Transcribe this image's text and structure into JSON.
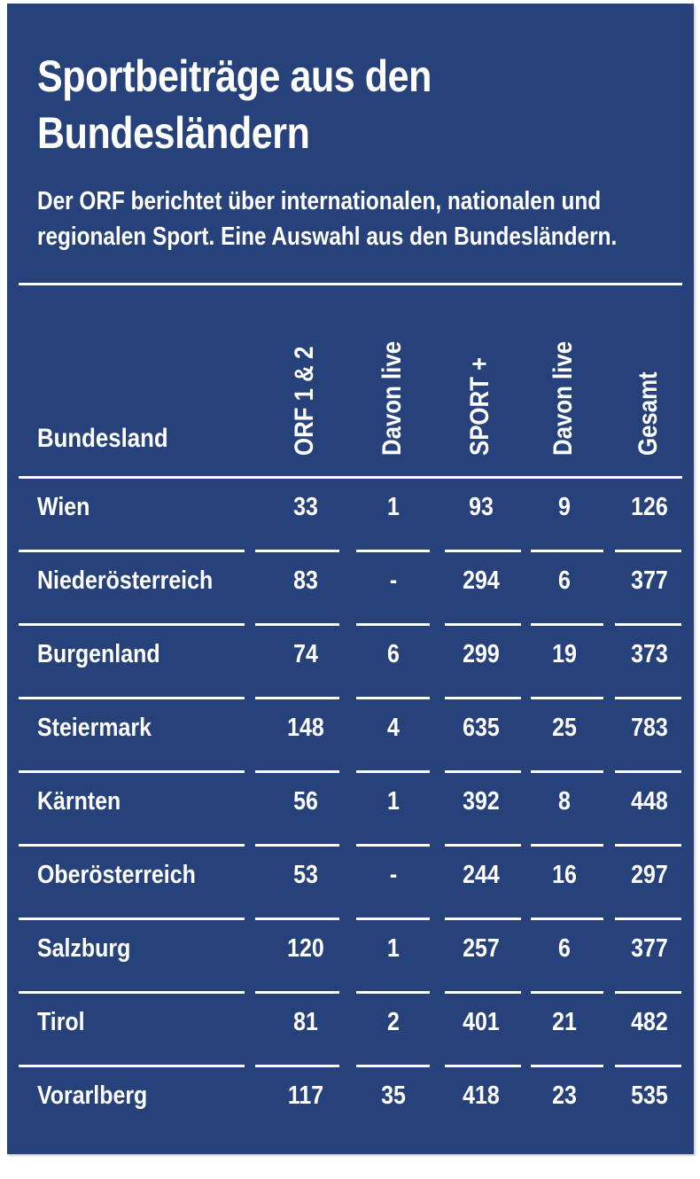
{
  "chart_data": {
    "type": "table",
    "title": "Sportbeiträge aus den Bundesländern",
    "subtitle_lines": [
      "Der ORF berichtet über internationalen, nationalen und",
      "regionalen Sport. Eine Auswahl aus den Bundesländern."
    ],
    "columns": [
      "Bundesland",
      "ORF 1 & 2",
      "Davon live",
      "SPORT +",
      "Davon live",
      "Gesamt"
    ],
    "rows": [
      {
        "land": "Wien",
        "values": [
          "33",
          "1",
          "93",
          "9",
          "126"
        ]
      },
      {
        "land": "Niederösterreich",
        "values": [
          "83",
          "-",
          "294",
          "6",
          "377"
        ]
      },
      {
        "land": "Burgenland",
        "values": [
          "74",
          "6",
          "299",
          "19",
          "373"
        ]
      },
      {
        "land": "Steiermark",
        "values": [
          "148",
          "4",
          "635",
          "25",
          "783"
        ]
      },
      {
        "land": "Kärnten",
        "values": [
          "56",
          "1",
          "392",
          "8",
          "448"
        ]
      },
      {
        "land": "Oberösterreich",
        "values": [
          "53",
          "-",
          "244",
          "16",
          "297"
        ]
      },
      {
        "land": "Salzburg",
        "values": [
          "120",
          "1",
          "257",
          "6",
          "377"
        ]
      },
      {
        "land": "Tirol",
        "values": [
          "81",
          "2",
          "401",
          "21",
          "482"
        ]
      },
      {
        "land": "Vorarlberg",
        "values": [
          "117",
          "35",
          "418",
          "23",
          "535"
        ]
      }
    ]
  },
  "colors": {
    "background": "#27427a",
    "text": "#ffffff"
  }
}
